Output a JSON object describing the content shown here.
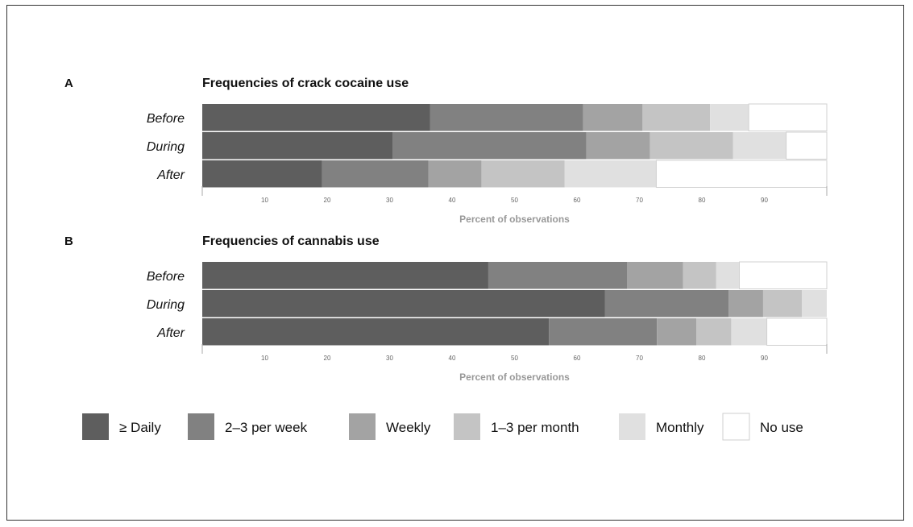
{
  "chart_data": [
    {
      "panel": "A",
      "type": "bar",
      "orientation": "horizontal",
      "stacked": true,
      "title": "Frequencies of crack cocaine use",
      "xlabel": "Percent of observations",
      "xlim": [
        0,
        100
      ],
      "xticks": [
        10,
        20,
        30,
        40,
        50,
        60,
        70,
        80,
        90
      ],
      "categories": [
        "Before",
        "During",
        "After"
      ],
      "series": [
        {
          "name": "≥ Daily",
          "values": [
            36.5,
            30.5,
            19.2
          ]
        },
        {
          "name": "2–3 per week",
          "values": [
            24.5,
            31.0,
            17.0
          ]
        },
        {
          "name": "Weekly",
          "values": [
            9.5,
            10.2,
            8.5
          ]
        },
        {
          "name": "1–3 per month",
          "values": [
            10.8,
            13.3,
            13.3
          ]
        },
        {
          "name": "Monthly",
          "values": [
            6.2,
            8.5,
            14.7
          ]
        },
        {
          "name": "No use",
          "values": [
            12.5,
            6.5,
            27.3
          ]
        }
      ]
    },
    {
      "panel": "B",
      "type": "bar",
      "orientation": "horizontal",
      "stacked": true,
      "title": "Frequencies of cannabis use",
      "xlabel": "Percent of observations",
      "xlim": [
        0,
        100
      ],
      "xticks": [
        10,
        20,
        30,
        40,
        50,
        60,
        70,
        80,
        90
      ],
      "categories": [
        "Before",
        "During",
        "After"
      ],
      "series": [
        {
          "name": "≥ Daily",
          "values": [
            45.8,
            64.5,
            55.5
          ]
        },
        {
          "name": "2–3 per week",
          "values": [
            22.2,
            19.8,
            17.3
          ]
        },
        {
          "name": "Weekly",
          "values": [
            9.0,
            5.5,
            6.3
          ]
        },
        {
          "name": "1–3 per month",
          "values": [
            5.3,
            6.2,
            5.6
          ]
        },
        {
          "name": "Monthly",
          "values": [
            3.7,
            4.0,
            5.7
          ]
        },
        {
          "name": "No use",
          "values": [
            14.0,
            0,
            9.6
          ]
        }
      ]
    }
  ],
  "legend": {
    "placement": "bottom",
    "items": [
      {
        "label": "≥ Daily",
        "color": "#5e5e5e"
      },
      {
        "label": "2–3 per week",
        "color": "#818181"
      },
      {
        "label": "Weekly",
        "color": "#a3a3a3"
      },
      {
        "label": "1–3 per month",
        "color": "#c4c4c4"
      },
      {
        "label": "Monthly",
        "color": "#e0e0e0"
      },
      {
        "label": "No use",
        "color": "#ffffff"
      }
    ]
  }
}
